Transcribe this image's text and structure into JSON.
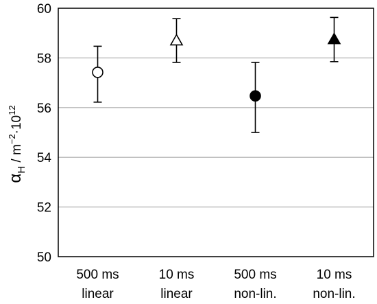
{
  "chart_data": {
    "type": "scatter",
    "ylabel": {
      "symbol": "α",
      "subscript": "H",
      "unit_prefix": " / m",
      "unit_exp": "−2",
      "unit_mid": "·10",
      "unit_exp2": "12"
    },
    "ylim": [
      50,
      60
    ],
    "yticks": [
      50,
      52,
      54,
      56,
      58,
      60
    ],
    "grid": true,
    "categories": [
      {
        "line1": "500 ms",
        "line2": "linear"
      },
      {
        "line1": "10 ms",
        "line2": "linear"
      },
      {
        "line1": "500 ms",
        "line2": "non-lin."
      },
      {
        "line1": "10 ms",
        "line2": "non-lin."
      }
    ],
    "points": [
      {
        "value": 57.42,
        "err_low": 56.22,
        "err_high": 58.47,
        "marker": "circle-open"
      },
      {
        "value": 58.7,
        "err_low": 57.82,
        "err_high": 59.58,
        "marker": "triangle-open"
      },
      {
        "value": 56.47,
        "err_low": 55.0,
        "err_high": 57.82,
        "marker": "circle-filled"
      },
      {
        "value": 58.75,
        "err_low": 57.85,
        "err_high": 59.63,
        "marker": "triangle-filled"
      }
    ]
  }
}
